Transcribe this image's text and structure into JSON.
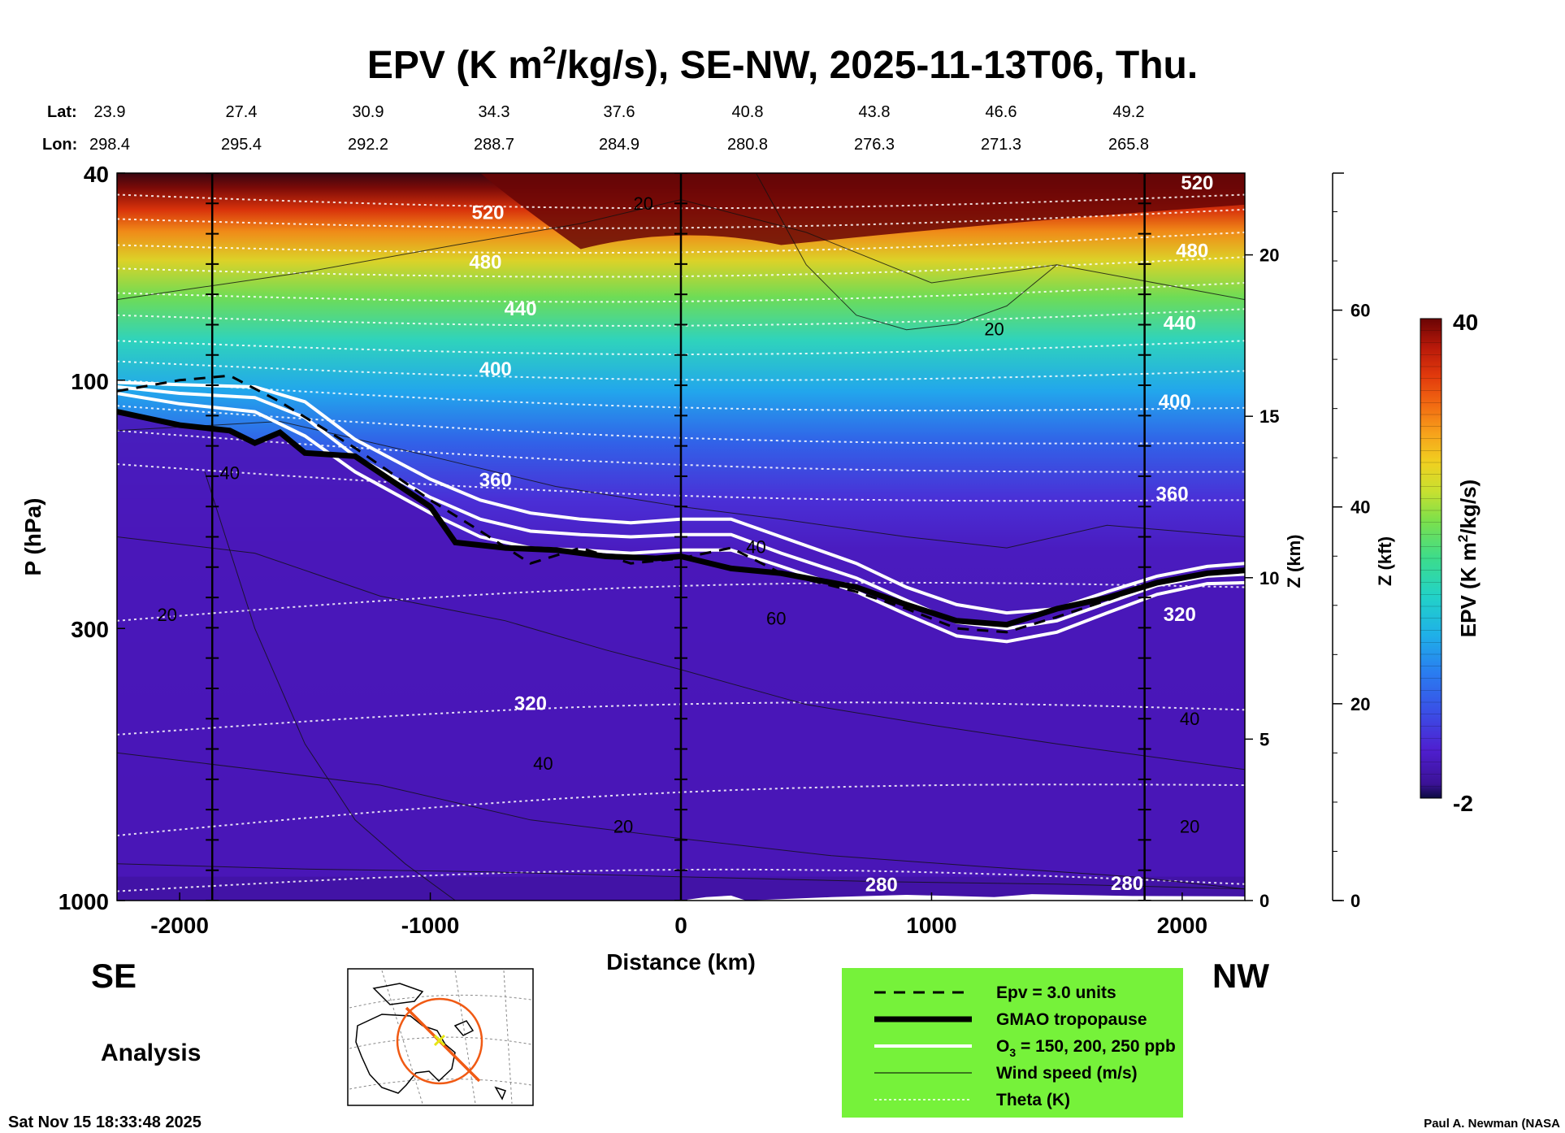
{
  "title_main": "EPV (K m",
  "title_sup": "2",
  "title_rest": "/kg/s), SE-NW, 2025-11-13T06, Thu.",
  "lat_label": "Lat:",
  "lon_label": "Lon:",
  "lats": [
    "23.9",
    "27.4",
    "30.9",
    "34.3",
    "37.6",
    "40.8",
    "43.8",
    "46.6",
    "49.2"
  ],
  "lons": [
    "298.4",
    "295.4",
    "292.2",
    "288.7",
    "284.9",
    "280.8",
    "276.3",
    "271.3",
    "265.8"
  ],
  "left_dir": "SE",
  "right_dir": "NW",
  "analysis": "Analysis",
  "timestamp": "Sat Nov 15 18:33:48 2025",
  "credit": "Paul A. Newman (NASA",
  "chart_data": {
    "type": "heatmap",
    "title": "EPV (K m2/kg/s), SE-NW, 2025-11-13T06, Thu.",
    "xlabel": "Distance (km)",
    "ylabel": "P (hPa)",
    "xlim": [
      -2250,
      2250
    ],
    "ylim_hpa": [
      1000,
      40
    ],
    "x_ticks": [
      "-2000",
      "-1000",
      "0",
      "1000",
      "2000"
    ],
    "x_tick_values": [
      -2000,
      -1000,
      0,
      1000,
      2000
    ],
    "y_ticks": [
      "40",
      "100",
      "300",
      "1000"
    ],
    "y_tick_values": [
      40,
      100,
      300,
      1000
    ],
    "z_km_label": "Z (km)",
    "z_km_ticks": [
      "0",
      "5",
      "10",
      "15",
      "20"
    ],
    "z_km_values": [
      0,
      5,
      10,
      15,
      20
    ],
    "z_kft_label": "Z (kft)",
    "z_kft_ticks": [
      "0",
      "20",
      "40",
      "60"
    ],
    "z_kft_values": [
      0,
      20,
      40,
      60
    ],
    "colorbar": {
      "label": "EPV (K m2/kg/s)",
      "label_main": "EPV (K m",
      "label_sup": "2",
      "label_rest": "/kg/s)",
      "min": -2,
      "max": 40,
      "min_label": "-2",
      "max_label": "40",
      "colors": [
        "#0b0b40",
        "#3b1296",
        "#4f1fd0",
        "#3a4fe6",
        "#2a7cf0",
        "#1fb0e8",
        "#22d2c8",
        "#3cdc8c",
        "#7ee04a",
        "#c8e030",
        "#f0d020",
        "#f7a21b",
        "#f26a12",
        "#e23a0c",
        "#b8190a",
        "#8a0b08",
        "#6a0404"
      ]
    },
    "vertical_markers_km": [
      -1870,
      0,
      1850
    ],
    "tropopause_p_hpa": {
      "x": [
        -2250,
        -2000,
        -1800,
        -1700,
        -1600,
        -1500,
        -1300,
        -1000,
        -900,
        -700,
        -500,
        -300,
        -100,
        0,
        200,
        400,
        700,
        900,
        1100,
        1300,
        1500,
        1700,
        1900,
        2100,
        2250
      ],
      "p": [
        115,
        122,
        125,
        132,
        126,
        138,
        140,
        175,
        205,
        210,
        212,
        218,
        220,
        218,
        230,
        235,
        250,
        270,
        290,
        295,
        275,
        262,
        245,
        235,
        232
      ]
    },
    "epv_3pvu_p_hpa": {
      "x": [
        -2250,
        -2000,
        -1800,
        -1600,
        -1300,
        -1000,
        -800,
        -600,
        -400,
        -200,
        0,
        200,
        400,
        700,
        900,
        1100,
        1300,
        1500,
        1700,
        1900,
        2100,
        2250
      ],
      "p": [
        105,
        100,
        98,
        110,
        135,
        170,
        195,
        225,
        210,
        225,
        220,
        210,
        235,
        255,
        275,
        300,
        305,
        285,
        265,
        245,
        235,
        232
      ]
    },
    "ozone_contours_ppb": [
      {
        "ppb": 150,
        "x": [
          -2250,
          -2000,
          -1700,
          -1500,
          -1300,
          -1000,
          -800,
          -600,
          -400,
          -200,
          0,
          200,
          400,
          700,
          900,
          1100,
          1300,
          1500,
          1700,
          1900,
          2100,
          2250
        ],
        "p": [
          101,
          102,
          103,
          110,
          130,
          155,
          170,
          180,
          185,
          188,
          185,
          185,
          200,
          225,
          250,
          270,
          280,
          275,
          255,
          238,
          228,
          225
        ]
      },
      {
        "ppb": 200,
        "x": [
          -2250,
          -2000,
          -1700,
          -1500,
          -1300,
          -1000,
          -800,
          -600,
          -400,
          -200,
          0,
          200,
          400,
          700,
          900,
          1100,
          1300,
          1500,
          1700,
          1900,
          2100,
          2250
        ],
        "p": [
          103,
          106,
          108,
          118,
          140,
          168,
          185,
          195,
          198,
          200,
          198,
          198,
          215,
          240,
          265,
          292,
          300,
          290,
          268,
          248,
          238,
          236
        ]
      },
      {
        "ppb": 250,
        "x": [
          -2250,
          -2000,
          -1700,
          -1500,
          -1300,
          -1000,
          -800,
          -600,
          -400,
          -200,
          0,
          200,
          400,
          700,
          900,
          1100,
          1300,
          1500,
          1700,
          1900,
          2100,
          2250
        ],
        "p": [
          106,
          111,
          115,
          128,
          150,
          180,
          200,
          210,
          212,
          215,
          212,
          212,
          228,
          255,
          282,
          310,
          318,
          305,
          280,
          258,
          246,
          245
        ]
      }
    ],
    "theta_labels": [
      {
        "value": "520",
        "x": -770,
        "p": 49
      },
      {
        "value": "480",
        "x": -780,
        "p": 61
      },
      {
        "value": "440",
        "x": -640,
        "p": 75
      },
      {
        "value": "400",
        "x": -740,
        "p": 98
      },
      {
        "value": "360",
        "x": -740,
        "p": 160
      },
      {
        "value": "320",
        "x": -600,
        "p": 430
      },
      {
        "value": "280",
        "x": 800,
        "p": 960
      },
      {
        "value": "520",
        "x": 2060,
        "p": 43
      },
      {
        "value": "480",
        "x": 2040,
        "p": 58
      },
      {
        "value": "440",
        "x": 1990,
        "p": 80
      },
      {
        "value": "400",
        "x": 1970,
        "p": 113
      },
      {
        "value": "360",
        "x": 1960,
        "p": 170
      },
      {
        "value": "320",
        "x": 1990,
        "p": 290
      },
      {
        "value": "280",
        "x": 1780,
        "p": 955
      }
    ],
    "wind_labels": [
      {
        "value": "20",
        "x": -150,
        "p": 47
      },
      {
        "value": "20",
        "x": 1250,
        "p": 82
      },
      {
        "value": "40",
        "x": -1800,
        "p": 155
      },
      {
        "value": "40",
        "x": 300,
        "p": 215
      },
      {
        "value": "60",
        "x": 380,
        "p": 295
      },
      {
        "value": "20",
        "x": -2050,
        "p": 290
      },
      {
        "value": "40",
        "x": -550,
        "p": 560
      },
      {
        "value": "20",
        "x": -230,
        "p": 740
      },
      {
        "value": "40",
        "x": 2030,
        "p": 460
      },
      {
        "value": "20",
        "x": 2030,
        "p": 740
      }
    ]
  },
  "legend": {
    "items": [
      {
        "label": "Epv = 3.0 units"
      },
      {
        "label": "GMAO tropopause"
      },
      {
        "label_main": "O",
        "label_sub": "3",
        "label_rest": " = 150, 200, 250 ppb"
      },
      {
        "label": "Wind speed (m/s)"
      },
      {
        "label": "Theta (K)"
      }
    ],
    "background": "#76f23a"
  },
  "map": {
    "track_color": "#f05a14",
    "center_color": "#e6e614"
  }
}
